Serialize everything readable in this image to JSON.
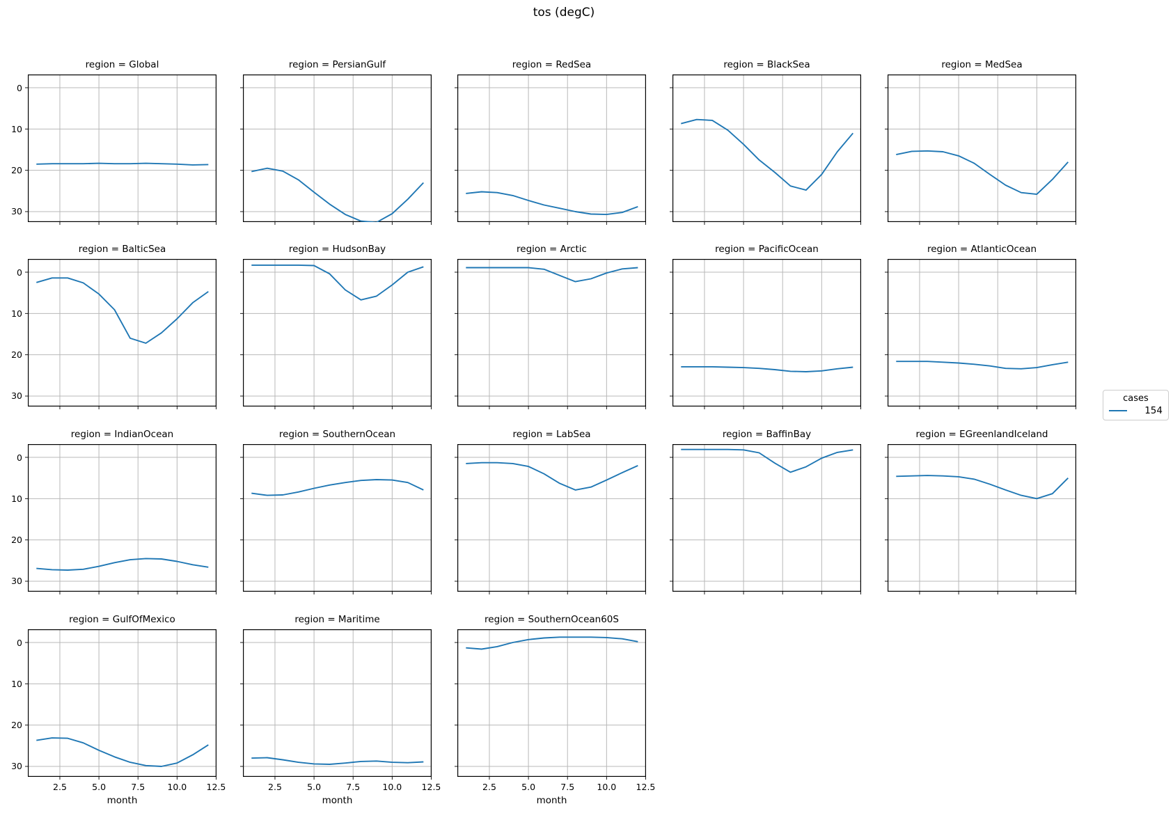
{
  "figure": {
    "title": "tos (degC)"
  },
  "legend": {
    "title": "cases",
    "entries": [
      {
        "label": "154",
        "color": "#1f77b4"
      }
    ]
  },
  "axes": {
    "xlabel": "month",
    "x_tick_labels": [
      "2.5",
      "5.0",
      "7.5",
      "10.0",
      "12.5"
    ],
    "x_tick_values": [
      2.5,
      5.0,
      7.5,
      10.0,
      12.5
    ],
    "y_tick_labels": [
      "0",
      "10",
      "20",
      "30"
    ],
    "y_tick_values": [
      0,
      10,
      20,
      30
    ],
    "grid": true
  },
  "chart_data": {
    "type": "line",
    "facet_field": "region",
    "facet_title_template": "region = {region}",
    "series_name": "154",
    "line_color": "#1f77b4",
    "x_label": "month",
    "x": [
      1,
      2,
      3,
      4,
      5,
      6,
      7,
      8,
      9,
      10,
      11,
      12
    ],
    "xlim": [
      0.45,
      12.55
    ],
    "ylim_top": -3.2,
    "ylim_bottom": 32.5,
    "y_axis_inverted": true,
    "facets": [
      {
        "region": "Global",
        "values": [
          18.5,
          18.4,
          18.4,
          18.4,
          18.3,
          18.4,
          18.4,
          18.3,
          18.4,
          18.5,
          18.7,
          18.6
        ]
      },
      {
        "region": "PersianGulf",
        "values": [
          20.3,
          19.5,
          20.2,
          22.3,
          25.3,
          28.2,
          30.7,
          32.3,
          32.6,
          30.5,
          27.0,
          23.0
        ]
      },
      {
        "region": "RedSea",
        "values": [
          25.6,
          25.2,
          25.4,
          26.1,
          27.3,
          28.4,
          29.2,
          30.0,
          30.6,
          30.7,
          30.2,
          28.8
        ]
      },
      {
        "region": "BlackSea",
        "values": [
          8.7,
          7.7,
          7.9,
          10.3,
          13.7,
          17.5,
          20.5,
          23.8,
          24.8,
          21.0,
          15.5,
          11.0
        ]
      },
      {
        "region": "MedSea",
        "values": [
          16.2,
          15.4,
          15.3,
          15.5,
          16.5,
          18.3,
          21.0,
          23.6,
          25.4,
          25.8,
          22.2,
          18.0
        ]
      },
      {
        "region": "BalticSea",
        "values": [
          2.5,
          1.4,
          1.4,
          2.6,
          5.3,
          9.1,
          16.0,
          17.2,
          14.7,
          11.3,
          7.4,
          4.7
        ]
      },
      {
        "region": "HudsonBay",
        "values": [
          -1.7,
          -1.7,
          -1.7,
          -1.7,
          -1.6,
          0.4,
          4.3,
          6.7,
          5.8,
          3.1,
          0.0,
          -1.3
        ]
      },
      {
        "region": "Arctic",
        "values": [
          -1.1,
          -1.1,
          -1.1,
          -1.1,
          -1.1,
          -0.7,
          0.8,
          2.3,
          1.6,
          0.2,
          -0.8,
          -1.1
        ]
      },
      {
        "region": "PacificOcean",
        "values": [
          22.9,
          22.9,
          22.9,
          23.0,
          23.1,
          23.3,
          23.6,
          24.0,
          24.1,
          23.9,
          23.4,
          23.0
        ]
      },
      {
        "region": "AtlanticOcean",
        "values": [
          21.6,
          21.6,
          21.6,
          21.8,
          22.0,
          22.3,
          22.7,
          23.3,
          23.4,
          23.1,
          22.4,
          21.8
        ]
      },
      {
        "region": "IndianOcean",
        "values": [
          26.9,
          27.2,
          27.3,
          27.1,
          26.4,
          25.5,
          24.8,
          24.5,
          24.6,
          25.2,
          26.0,
          26.6
        ]
      },
      {
        "region": "SouthernOcean",
        "values": [
          8.7,
          9.2,
          9.1,
          8.4,
          7.5,
          6.7,
          6.1,
          5.6,
          5.4,
          5.5,
          6.1,
          7.9
        ]
      },
      {
        "region": "LabSea",
        "values": [
          1.5,
          1.3,
          1.3,
          1.5,
          2.2,
          4.0,
          6.3,
          7.9,
          7.2,
          5.5,
          3.7,
          2.0
        ]
      },
      {
        "region": "BaffinBay",
        "values": [
          -1.9,
          -1.9,
          -1.9,
          -1.9,
          -1.8,
          -1.1,
          1.4,
          3.6,
          2.3,
          0.2,
          -1.2,
          -1.8
        ]
      },
      {
        "region": "EGreenlandIceland",
        "values": [
          4.6,
          4.5,
          4.4,
          4.5,
          4.7,
          5.3,
          6.5,
          7.9,
          9.2,
          10.0,
          8.8,
          5.0
        ]
      },
      {
        "region": "GulfOfMexico",
        "values": [
          23.7,
          23.1,
          23.2,
          24.3,
          26.1,
          27.7,
          29.0,
          29.8,
          30.0,
          29.2,
          27.2,
          24.8
        ]
      },
      {
        "region": "Maritime",
        "values": [
          28.0,
          27.9,
          28.4,
          29.0,
          29.4,
          29.5,
          29.2,
          28.8,
          28.7,
          29.0,
          29.1,
          28.9
        ]
      },
      {
        "region": "SouthernOcean60S",
        "values": [
          1.3,
          1.6,
          1.0,
          0.0,
          -0.7,
          -1.1,
          -1.3,
          -1.3,
          -1.3,
          -1.2,
          -0.9,
          -0.2
        ]
      }
    ]
  }
}
